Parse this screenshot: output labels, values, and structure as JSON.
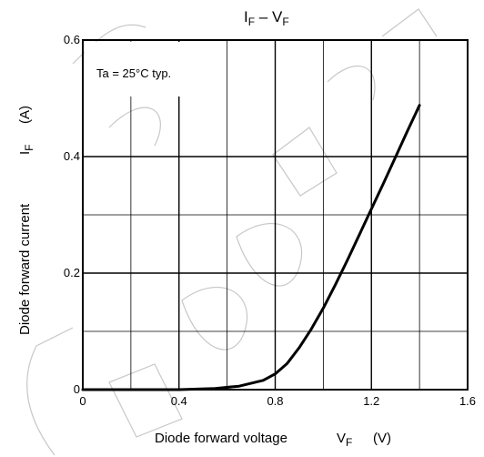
{
  "chart_data": {
    "type": "line",
    "title_main": "I",
    "title_sub1": "F",
    "title_dash": " – V",
    "title_sub2": "F",
    "xlabel_main": "Diode forward voltage",
    "xlabel_symbol": "V",
    "xlabel_sub": "F",
    "xlabel_unit": "(V)",
    "ylabel_main": "Diode forward current",
    "ylabel_symbol": "I",
    "ylabel_sub": "F",
    "ylabel_unit": "(A)",
    "annotation": "Ta = 25°C typ.",
    "xlim": [
      0,
      1.6
    ],
    "ylim": [
      0,
      0.6
    ],
    "x_ticks": [
      0,
      0.4,
      0.8,
      1.2,
      1.6
    ],
    "x_tick_labels": [
      "0",
      "0.4",
      "0.8",
      "1.2",
      "1.6"
    ],
    "y_ticks": [
      0,
      0.2,
      0.4,
      0.6
    ],
    "y_tick_labels": [
      "0",
      "0.2",
      "0.4",
      "0.6"
    ],
    "x_grid": [
      0.2,
      0.4,
      0.6,
      0.8,
      1.0,
      1.2,
      1.4
    ],
    "y_grid": [
      0.1,
      0.2,
      0.3,
      0.4
    ],
    "grid": true,
    "series": [
      {
        "x": [
          0.0,
          0.4,
          0.55,
          0.65,
          0.75,
          0.8,
          0.85,
          0.9,
          0.95,
          1.0,
          1.05,
          1.1,
          1.15,
          1.2,
          1.25,
          1.3,
          1.35,
          1.4
        ],
        "y": [
          0.0,
          0.0,
          0.002,
          0.006,
          0.016,
          0.027,
          0.045,
          0.072,
          0.104,
          0.14,
          0.18,
          0.222,
          0.266,
          0.31,
          0.354,
          0.399,
          0.444,
          0.488
        ]
      }
    ]
  }
}
